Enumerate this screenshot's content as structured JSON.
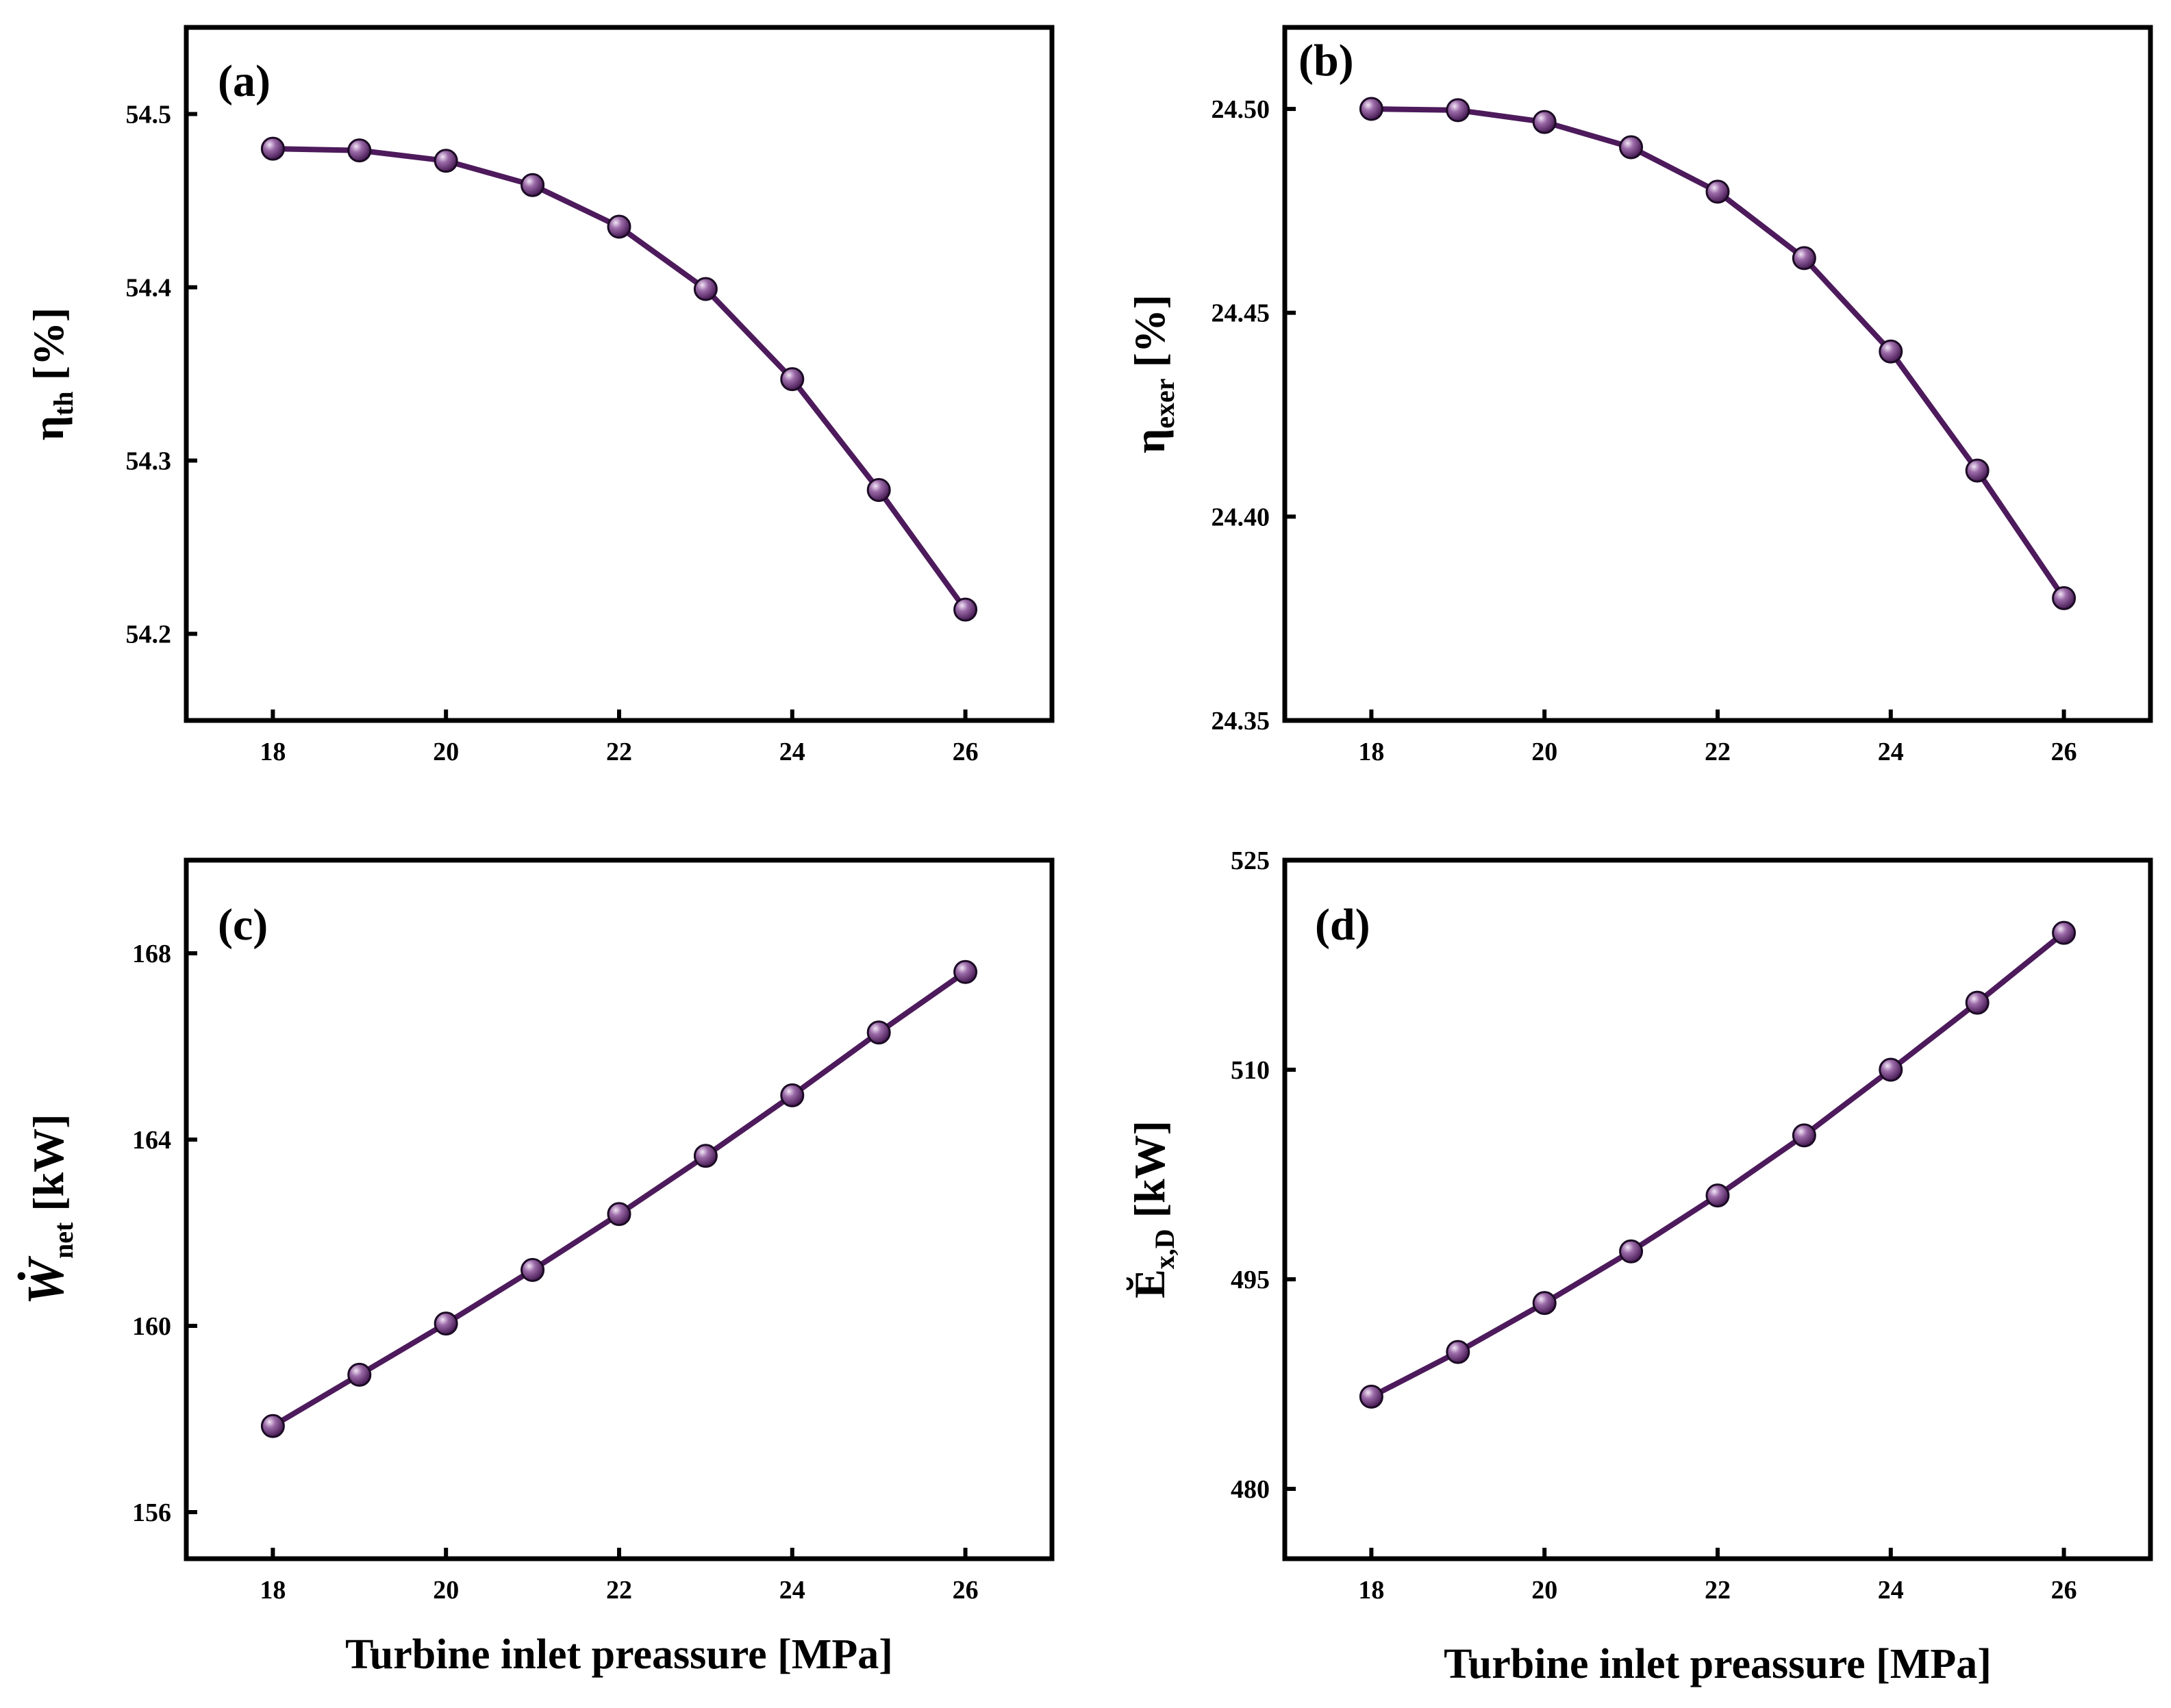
{
  "colors": {
    "series": "#4d1a5c",
    "marker_shade": "#3a0f47",
    "marker_light": "#f2e6f6",
    "axis": "#000000"
  },
  "chart_data": [
    {
      "type": "line",
      "panel_tag": "(a)",
      "ylabel": {
        "symbol": "η",
        "sub": "th",
        "unit": " [%]"
      },
      "xlabel": "",
      "x": [
        18,
        19,
        20,
        21,
        22,
        23,
        24,
        25,
        26
      ],
      "values": [
        54.48,
        54.479,
        54.473,
        54.459,
        54.435,
        54.399,
        54.347,
        54.283,
        54.214
      ],
      "xlim": [
        17,
        27
      ],
      "ylim": [
        54.15,
        54.55
      ],
      "xticks": [
        18,
        20,
        22,
        24,
        26
      ],
      "xtick_labels": [
        "18",
        "20",
        "22",
        "24",
        "26"
      ],
      "yticks": [
        54.2,
        54.3,
        54.4,
        54.5
      ],
      "ytick_labels": [
        "54.2",
        "54.3",
        "54.4",
        "54.5"
      ],
      "grid": false
    },
    {
      "type": "line",
      "panel_tag": "(b)",
      "ylabel": {
        "symbol": "η",
        "sub": "exer",
        "unit": " [%]"
      },
      "xlabel": "",
      "x": [
        18,
        19,
        20,
        21,
        22,
        23,
        24,
        25,
        26
      ],
      "values": [
        24.5,
        24.4997,
        24.4968,
        24.4906,
        24.4797,
        24.4634,
        24.4405,
        24.4113,
        24.38
      ],
      "xlim": [
        17,
        27
      ],
      "ylim": [
        24.35,
        24.52
      ],
      "xticks": [
        18,
        20,
        22,
        24,
        26
      ],
      "xtick_labels": [
        "18",
        "20",
        "22",
        "24",
        "26"
      ],
      "yticks": [
        24.35,
        24.4,
        24.45,
        24.5
      ],
      "ytick_labels": [
        "24.35",
        "24.40",
        "24.45",
        "24.50"
      ],
      "grid": false
    },
    {
      "type": "line",
      "panel_tag": "(c)",
      "ylabel": {
        "symbol": "Ẇ",
        "sub": "net",
        "unit": " [kW]"
      },
      "xlabel": "Turbine inlet preassure [MPa]",
      "x": [
        18,
        19,
        20,
        21,
        22,
        23,
        24,
        25,
        26
      ],
      "values": [
        157.85,
        158.95,
        160.05,
        161.2,
        162.4,
        163.65,
        164.95,
        166.3,
        167.6
      ],
      "xlim": [
        17,
        27
      ],
      "ylim": [
        155,
        170
      ],
      "xticks": [
        18,
        20,
        22,
        24,
        26
      ],
      "xtick_labels": [
        "18",
        "20",
        "22",
        "24",
        "26"
      ],
      "yticks": [
        156,
        160,
        164,
        168
      ],
      "ytick_labels": [
        "156",
        "160",
        "164",
        "168"
      ],
      "grid": false
    },
    {
      "type": "line",
      "panel_tag": "(d)",
      "ylabel": {
        "symbol": "Ĕ",
        "sub": "x,D",
        "unit": " [kW]"
      },
      "xlabel": "Turbine inlet preassure [MPa]",
      "x": [
        18,
        19,
        20,
        21,
        22,
        23,
        24,
        25,
        26
      ],
      "values": [
        486.6,
        489.8,
        493.3,
        497.0,
        501.0,
        505.3,
        510.0,
        514.8,
        519.8
      ],
      "xlim": [
        17,
        27
      ],
      "ylim": [
        475,
        525
      ],
      "xticks": [
        18,
        20,
        22,
        24,
        26
      ],
      "xtick_labels": [
        "18",
        "20",
        "22",
        "24",
        "26"
      ],
      "yticks": [
        480,
        495,
        510,
        525
      ],
      "ytick_labels": [
        "480",
        "495",
        "510",
        "525"
      ],
      "grid": false
    }
  ]
}
